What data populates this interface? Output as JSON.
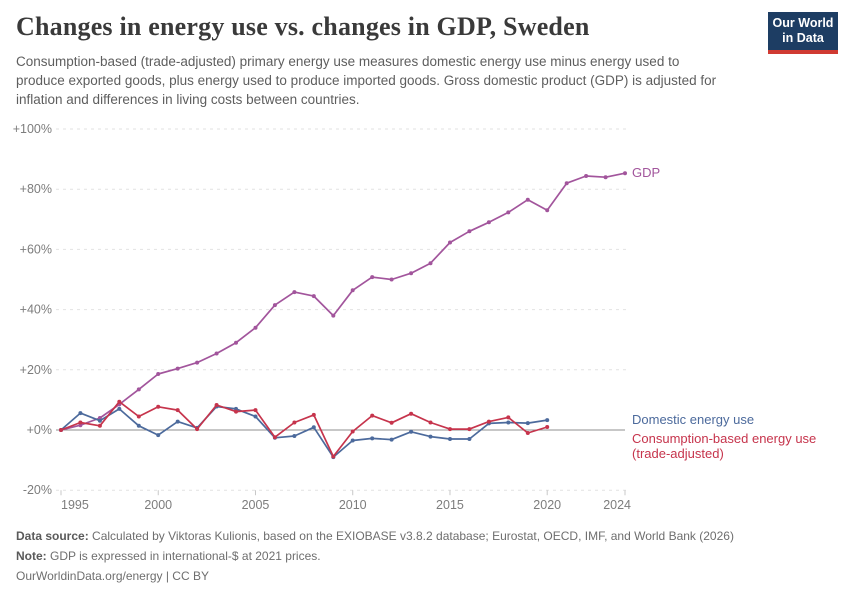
{
  "header": {
    "title": "Changes in energy use vs. changes in GDP, Sweden",
    "subtitle": "Consumption-based (trade-adjusted) primary energy use measures domestic energy use minus energy used to produce exported goods, plus energy used to produce imported goods. Gross domestic product (GDP) is adjusted for inflation and differences in living costs between countries.",
    "logo": {
      "line1": "Our World",
      "line2": "in Data",
      "bg": "#1d3d63",
      "accent": "#d03a32"
    }
  },
  "chart_data": {
    "type": "line",
    "title": "Changes in energy use vs. changes in GDP, Sweden",
    "xlabel": "",
    "ylabel": "",
    "xlim": [
      1995,
      2024
    ],
    "ylim": [
      -20,
      100
    ],
    "grid": "horizontal-dashed",
    "zero_line": true,
    "legend_position": "right-of-plot",
    "xticks": [
      1995,
      2000,
      2005,
      2010,
      2015,
      2020,
      2024
    ],
    "yticks": [
      {
        "value": 100,
        "label": "+100%"
      },
      {
        "value": 80,
        "label": "+80%"
      },
      {
        "value": 60,
        "label": "+60%"
      },
      {
        "value": 40,
        "label": "+40%"
      },
      {
        "value": 20,
        "label": "+20%"
      },
      {
        "value": 0,
        "label": "+0%"
      },
      {
        "value": -20,
        "label": "-20%"
      }
    ],
    "series": [
      {
        "name": "GDP",
        "color": "#a2559c",
        "end_labels": [
          "GDP"
        ],
        "label_dy": 0,
        "x": [
          1995,
          1996,
          1997,
          1998,
          1999,
          2000,
          2001,
          2002,
          2003,
          2004,
          2005,
          2006,
          2007,
          2008,
          2009,
          2010,
          2011,
          2012,
          2013,
          2014,
          2015,
          2016,
          2017,
          2018,
          2019,
          2020,
          2021,
          2022,
          2023,
          2024
        ],
        "values": [
          0,
          1.6,
          4,
          8.5,
          13.5,
          18.6,
          20.4,
          22.4,
          25.4,
          29,
          34,
          41.5,
          45.8,
          44.5,
          38,
          46.4,
          50.8,
          50,
          52.1,
          55.4,
          62.3,
          66,
          69,
          72.3,
          76.5,
          73,
          82,
          84.4,
          84,
          85.3
        ]
      },
      {
        "name": "Domestic energy use",
        "color": "#4c6a9c",
        "end_labels": [
          "Domestic energy use"
        ],
        "label_dy": 0,
        "x": [
          1995,
          1996,
          1997,
          1998,
          1999,
          2000,
          2001,
          2002,
          2003,
          2004,
          2005,
          2006,
          2007,
          2008,
          2009,
          2010,
          2011,
          2012,
          2013,
          2014,
          2015,
          2016,
          2017,
          2018,
          2019,
          2020
        ],
        "values": [
          0,
          5.6,
          3.1,
          7,
          1.4,
          -1.7,
          2.8,
          0.7,
          7.8,
          7,
          4.5,
          -2.6,
          -2,
          0.9,
          -9,
          -3.5,
          -2.8,
          -3.2,
          -0.6,
          -2.2,
          -3,
          -3,
          2.2,
          2.5,
          2.3,
          3.3
        ]
      },
      {
        "name": "Consumption-based energy use (trade-adjusted)",
        "color": "#c6344c",
        "end_labels": [
          "Consumption-based energy use",
          "(trade-adjusted)"
        ],
        "label_dy": 12,
        "x": [
          1995,
          1996,
          1997,
          1998,
          1999,
          2000,
          2001,
          2002,
          2003,
          2004,
          2005,
          2006,
          2007,
          2008,
          2009,
          2010,
          2011,
          2012,
          2013,
          2014,
          2015,
          2016,
          2017,
          2018,
          2019,
          2020
        ],
        "values": [
          0,
          2.5,
          1.4,
          9.4,
          4.5,
          7.7,
          6.6,
          0.3,
          8.3,
          6.1,
          6.6,
          -2.4,
          2.5,
          5,
          -8.8,
          -0.5,
          4.8,
          2.4,
          5.4,
          2.5,
          0.3,
          0.3,
          2.8,
          4.2,
          -1,
          1
        ]
      }
    ]
  },
  "footer": {
    "data_source_label": "Data source:",
    "data_source_text": "Calculated by Viktoras Kulionis, based on the EXIOBASE v3.8.2 database; Eurostat, OECD, IMF, and World Bank (2026)",
    "note_label": "Note:",
    "note_text": "GDP is expressed in international-$ at 2021 prices.",
    "link": "OurWorldinData.org/energy",
    "license_suffix": " | CC BY"
  }
}
